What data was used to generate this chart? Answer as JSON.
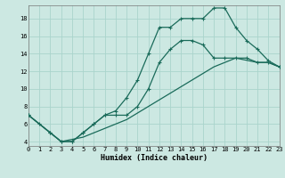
{
  "xlabel": "Humidex (Indice chaleur)",
  "bg_color": "#cce8e2",
  "grid_color": "#aad4cc",
  "line_color": "#1a6b5a",
  "xlim": [
    0,
    23
  ],
  "ylim": [
    3.5,
    19.5
  ],
  "xticks": [
    0,
    1,
    2,
    3,
    4,
    5,
    6,
    7,
    8,
    9,
    10,
    11,
    12,
    13,
    14,
    15,
    16,
    17,
    18,
    19,
    20,
    21,
    22,
    23
  ],
  "yticks": [
    4,
    6,
    8,
    10,
    12,
    14,
    16,
    18
  ],
  "curve_upper_x": [
    0,
    1,
    2,
    3,
    4,
    5,
    6,
    7,
    8,
    9,
    10,
    11,
    12,
    13,
    14,
    15,
    16,
    17,
    18,
    19,
    20,
    21,
    22,
    23
  ],
  "curve_upper_y": [
    7,
    6,
    5,
    4,
    4,
    5,
    6,
    7,
    7.5,
    9,
    11,
    14,
    17,
    17,
    18,
    18,
    18,
    19.2,
    19.2,
    17,
    15.5,
    14.5,
    13.2,
    12.5
  ],
  "curve_mid_x": [
    0,
    2,
    3,
    4,
    5,
    6,
    7,
    8,
    9,
    10,
    11,
    12,
    13,
    14,
    15,
    16,
    17,
    18,
    19,
    20,
    21,
    22,
    23
  ],
  "curve_mid_y": [
    7,
    5,
    4,
    4,
    5,
    6,
    7,
    7,
    7,
    8,
    10,
    13,
    14.5,
    15.5,
    15.5,
    15,
    13.5,
    13.5,
    13.5,
    13.5,
    13,
    13,
    12.5
  ],
  "curve_lower_x": [
    0,
    2,
    3,
    5,
    7,
    9,
    11,
    13,
    15,
    17,
    19,
    21,
    22,
    23
  ],
  "curve_lower_y": [
    7,
    5,
    4,
    4.5,
    5.5,
    6.5,
    8,
    9.5,
    11,
    12.5,
    13.5,
    13,
    13,
    12.5
  ]
}
